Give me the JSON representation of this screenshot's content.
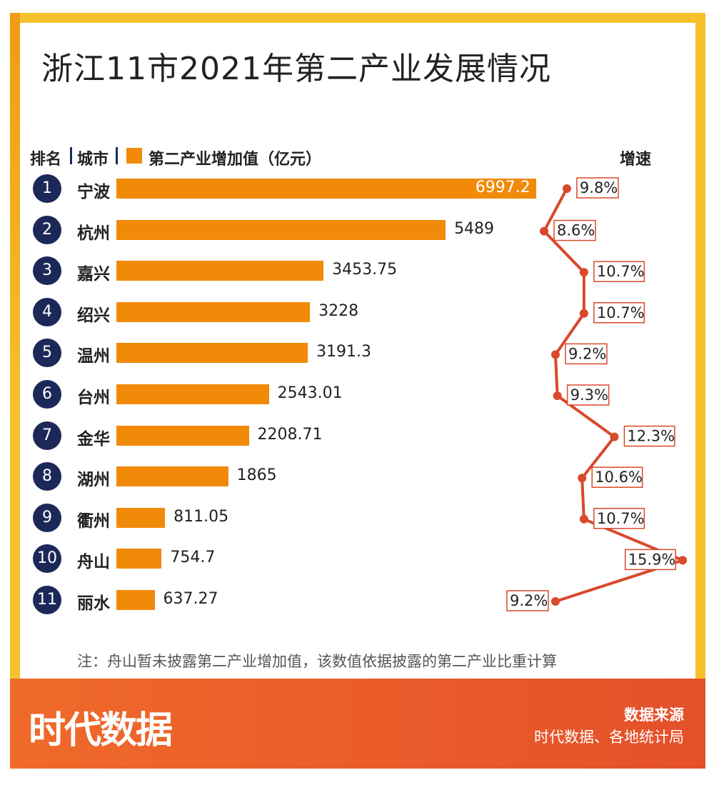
{
  "title": "浙江11市2021年第二产业发展情况",
  "headers": {
    "rank": "排名",
    "city": "城市",
    "value": "第二产业增加值（亿元）",
    "growth": "增速"
  },
  "note": "注：舟山暂未披露第二产业增加值，该数值依据披露的第二产业比重计算",
  "footer": {
    "logo": "时代数据",
    "source_title": "数据来源",
    "source_text": "时代数据、各地统计局"
  },
  "colors": {
    "bar": "#f18a08",
    "line": "#d9492b",
    "rank_badge": "#1c2858",
    "footer": "#e95a2a"
  },
  "chart_data": {
    "type": "bar",
    "orientation": "horizontal",
    "categories": [
      "宁波",
      "杭州",
      "嘉兴",
      "绍兴",
      "温州",
      "台州",
      "金华",
      "湖州",
      "衢州",
      "舟山",
      "丽水"
    ],
    "ranks": [
      "1",
      "2",
      "3",
      "4",
      "5",
      "6",
      "7",
      "8",
      "9",
      "10",
      "11"
    ],
    "values": [
      6997.2,
      5489,
      3453.75,
      3228,
      3191.3,
      2543.01,
      2208.71,
      1865,
      811.05,
      754.7,
      637.27
    ],
    "value_labels": [
      "6997.2",
      "5489",
      "3453.75",
      "3228",
      "3191.3",
      "2543.01",
      "2208.71",
      "1865",
      "811.05",
      "754.7",
      "637.27"
    ],
    "growth": [
      9.8,
      8.6,
      10.7,
      10.7,
      9.2,
      9.3,
      12.3,
      10.6,
      10.7,
      15.9,
      9.2
    ],
    "growth_labels": [
      "9.8%",
      "8.6%",
      "10.7%",
      "10.7%",
      "9.2%",
      "9.3%",
      "12.3%",
      "10.6%",
      "10.7%",
      "15.9%",
      "9.2%"
    ]
  }
}
